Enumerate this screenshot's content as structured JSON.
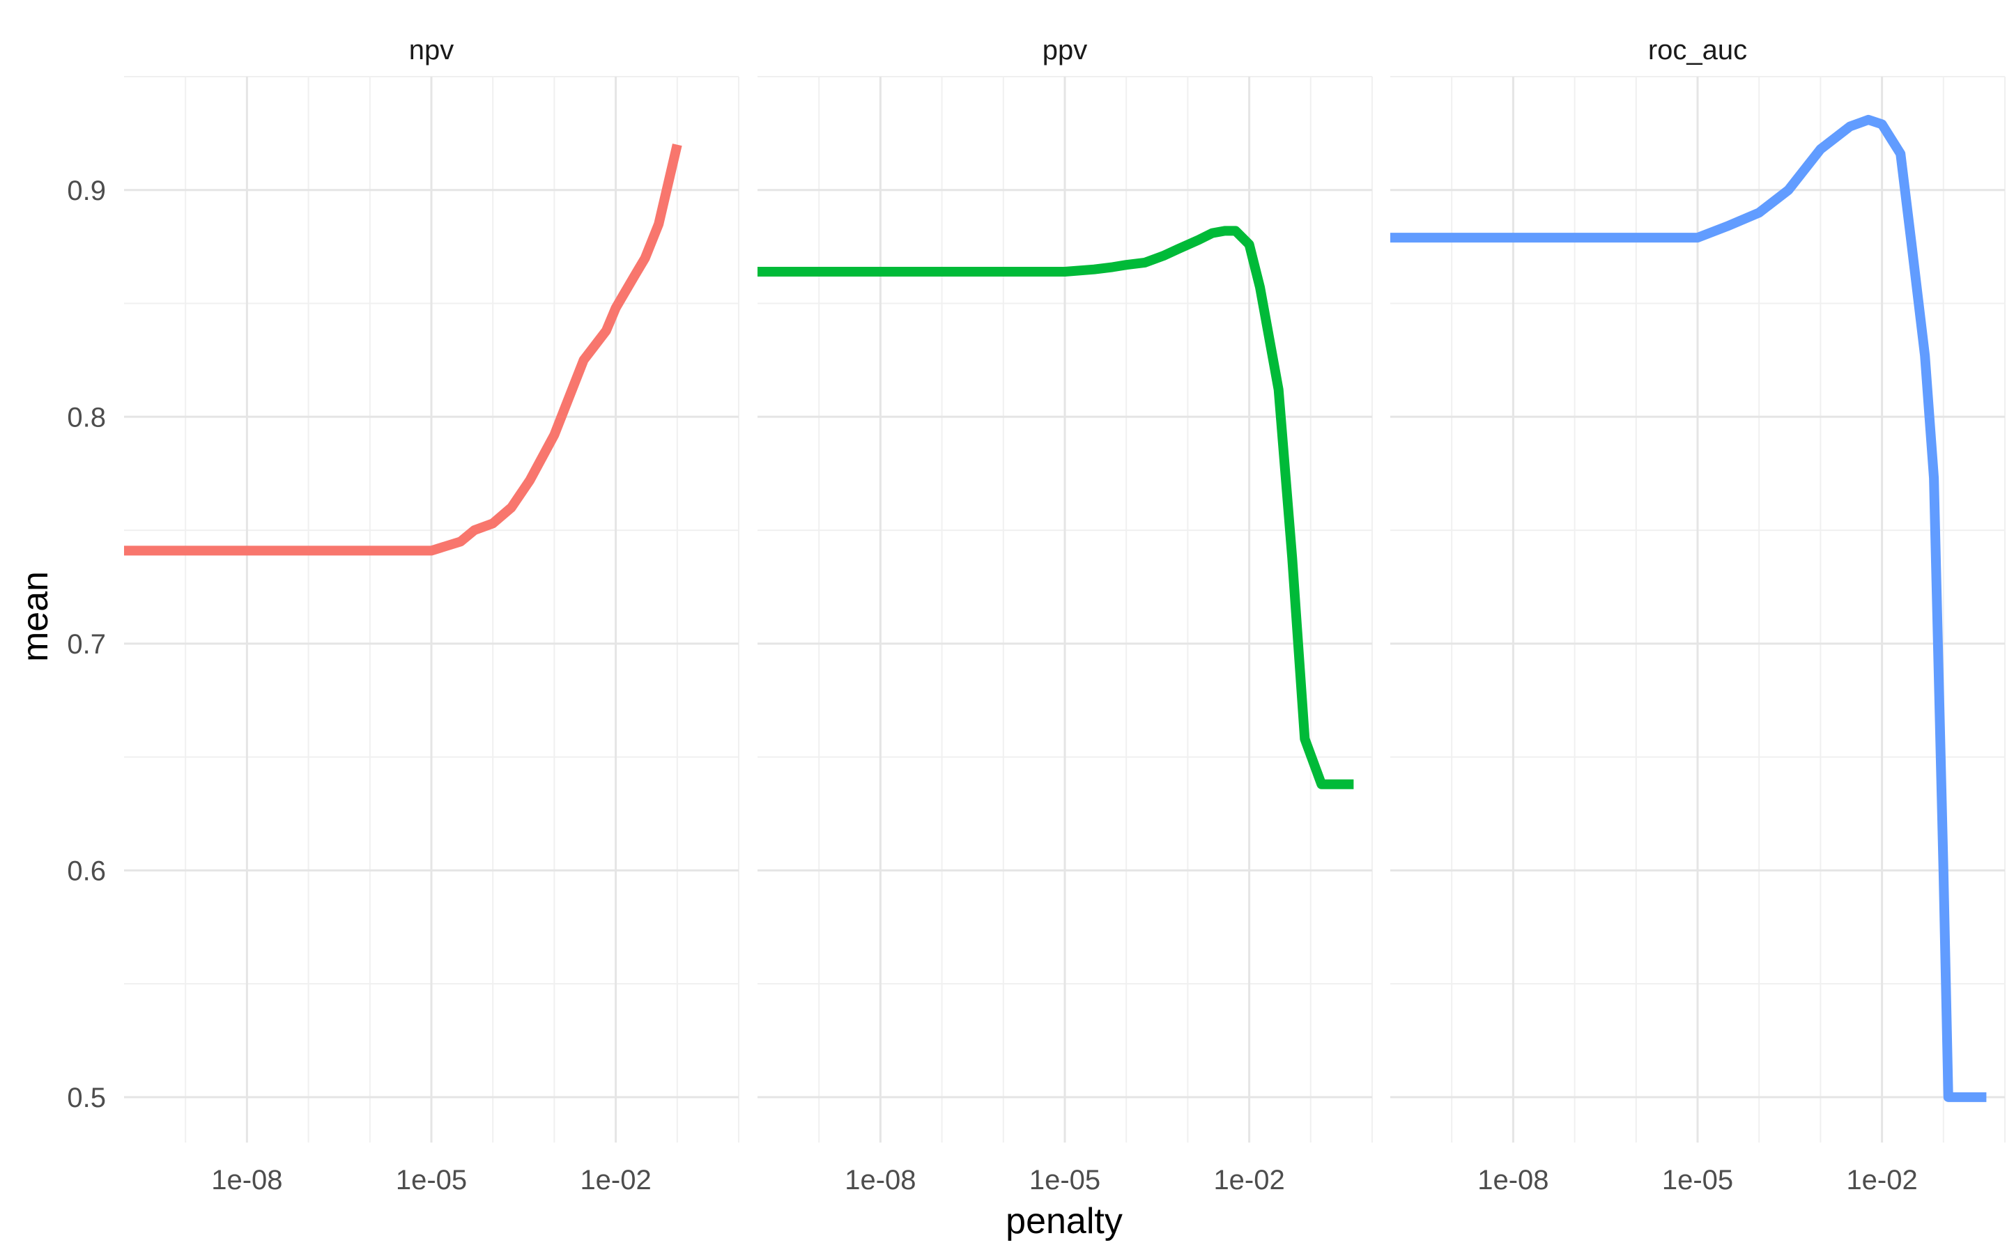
{
  "chart_data": {
    "type": "line",
    "xlabel": "penalty",
    "ylabel": "mean",
    "x_scale": "log10",
    "x_ticks": [
      1e-08,
      1e-05,
      0.01
    ],
    "x_tick_labels": [
      "1e-08",
      "1e-05",
      "1e-02"
    ],
    "xlim": [
      1e-10,
      1
    ],
    "y_ticks": [
      0.5,
      0.6,
      0.7,
      0.8,
      0.9
    ],
    "y_tick_labels": [
      "0.5",
      "0.6",
      "0.7",
      "0.8",
      "0.9"
    ],
    "ylim": [
      0.48,
      0.95
    ],
    "grid": true,
    "legend": "none",
    "facets": [
      {
        "label": "npv",
        "color": "#F8766D",
        "x": [
          1e-10,
          1e-09,
          1e-08,
          1e-07,
          1e-06,
          1e-05,
          1e-05,
          3e-05,
          5e-05,
          0.0001,
          0.0002,
          0.0004,
          0.001,
          0.003,
          0.007,
          0.01,
          0.02,
          0.03,
          0.05,
          0.1
        ],
        "y": [
          0.741,
          0.741,
          0.741,
          0.741,
          0.741,
          0.741,
          0.741,
          0.745,
          0.75,
          0.753,
          0.76,
          0.772,
          0.792,
          0.825,
          0.838,
          0.848,
          0.862,
          0.87,
          0.885,
          0.92
        ]
      },
      {
        "label": "ppv",
        "color": "#00BA38",
        "x": [
          1e-10,
          1e-08,
          1e-06,
          1e-05,
          1e-05,
          3e-05,
          6e-05,
          0.0001,
          0.0002,
          0.0004,
          0.0007,
          0.0015,
          0.0025,
          0.004,
          0.006,
          0.01,
          0.015,
          0.03,
          0.05,
          0.08,
          0.15,
          0.3,
          0.5
        ],
        "y": [
          0.864,
          0.864,
          0.864,
          0.864,
          0.864,
          0.865,
          0.866,
          0.867,
          0.868,
          0.871,
          0.874,
          0.878,
          0.881,
          0.882,
          0.882,
          0.876,
          0.857,
          0.812,
          0.738,
          0.658,
          0.638,
          0.638,
          0.638
        ]
      },
      {
        "label": "roc_auc",
        "color": "#619CFF",
        "x": [
          1e-10,
          1e-08,
          1e-06,
          1e-05,
          1e-05,
          3e-05,
          0.0001,
          0.0003,
          0.001,
          0.003,
          0.006,
          0.01,
          0.02,
          0.03,
          0.05,
          0.07,
          0.1,
          0.12,
          0.15,
          0.2,
          0.5
        ],
        "y": [
          0.879,
          0.879,
          0.879,
          0.879,
          0.879,
          0.884,
          0.89,
          0.9,
          0.918,
          0.928,
          0.931,
          0.929,
          0.916,
          0.877,
          0.827,
          0.773,
          0.6,
          0.5,
          0.5,
          0.5,
          0.5
        ]
      }
    ]
  }
}
